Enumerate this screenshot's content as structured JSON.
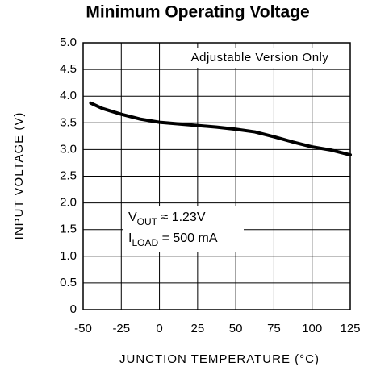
{
  "chart_data": {
    "type": "line",
    "title": "Minimum Operating Voltage",
    "x_label": "JUNCTION TEMPERATURE (°C)",
    "y_label": "INPUT VOLTAGE (V)",
    "annotations": [
      {
        "text": "Adjustable Version Only"
      },
      {
        "main": "V",
        "sub": "OUT",
        "rest": " ≈ 1.23V"
      },
      {
        "main": "I",
        "sub": "LOAD",
        "rest": " = 500 mA"
      }
    ],
    "x": [
      -45,
      -37.5,
      -25,
      -12.5,
      0,
      12.5,
      25,
      37.5,
      50,
      62.5,
      75,
      87.5,
      100,
      112.5,
      125
    ],
    "values": [
      3.87,
      3.77,
      3.66,
      3.57,
      3.51,
      3.48,
      3.45,
      3.42,
      3.38,
      3.33,
      3.24,
      3.14,
      3.05,
      2.99,
      2.9
    ],
    "color": "#000000",
    "xlim": [
      -50,
      125
    ],
    "xticks": [
      -50,
      -25,
      0,
      25,
      50,
      75,
      100,
      125
    ],
    "ylim": [
      0,
      5
    ],
    "yticks": [
      0,
      0.5,
      {
        "value": 1,
        "label": "1.0"
      },
      1.5,
      {
        "value": 2,
        "label": "2.0"
      },
      2.5,
      {
        "value": 3,
        "label": "3.0"
      },
      3.5,
      {
        "value": 4,
        "label": "4.0"
      },
      4.5,
      {
        "value": 5,
        "label": "5.0"
      }
    ],
    "grid": true
  }
}
